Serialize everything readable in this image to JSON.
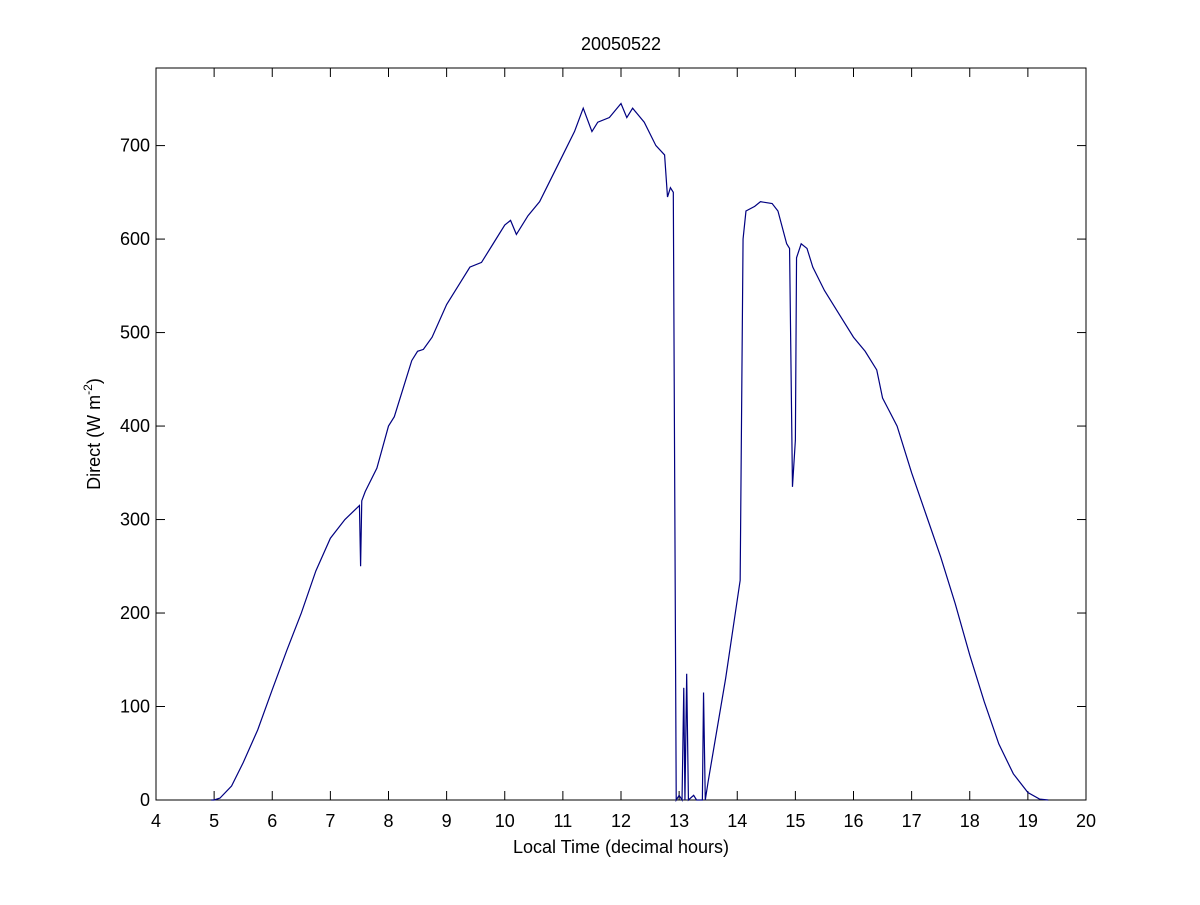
{
  "chart_data": {
    "type": "line",
    "title": "20050522",
    "xlabel": "Local Time (decimal hours)",
    "ylabel_parts": [
      "Direct (W m",
      "-2",
      ")"
    ],
    "x": [
      4.95,
      5.0,
      5.1,
      5.3,
      5.5,
      5.75,
      6.0,
      6.25,
      6.5,
      6.75,
      7.0,
      7.25,
      7.5,
      7.52,
      7.54,
      7.6,
      7.8,
      8.0,
      8.1,
      8.25,
      8.4,
      8.5,
      8.6,
      8.75,
      9.0,
      9.25,
      9.4,
      9.6,
      9.8,
      10.0,
      10.1,
      10.2,
      10.4,
      10.6,
      10.8,
      11.0,
      11.2,
      11.35,
      11.5,
      11.6,
      11.8,
      12.0,
      12.1,
      12.2,
      12.4,
      12.6,
      12.75,
      12.8,
      12.85,
      12.9,
      12.95,
      13.0,
      13.05,
      13.08,
      13.1,
      13.13,
      13.16,
      13.25,
      13.3,
      13.4,
      13.42,
      13.45,
      13.5,
      13.8,
      14.05,
      14.1,
      14.15,
      14.3,
      14.4,
      14.6,
      14.7,
      14.85,
      14.9,
      14.95,
      15.0,
      15.02,
      15.1,
      15.2,
      15.3,
      15.5,
      15.8,
      16.0,
      16.2,
      16.4,
      16.5,
      16.75,
      17.0,
      17.25,
      17.5,
      17.75,
      18.0,
      18.25,
      18.5,
      18.75,
      19.0,
      19.2,
      19.35
    ],
    "series": [
      {
        "color": "#000080",
        "values": [
          0,
          0,
          2,
          15,
          40,
          75,
          118,
          160,
          200,
          245,
          280,
          300,
          315,
          250,
          320,
          330,
          355,
          400,
          410,
          440,
          470,
          480,
          482,
          495,
          530,
          555,
          570,
          575,
          595,
          615,
          620,
          605,
          625,
          640,
          665,
          690,
          715,
          740,
          715,
          725,
          730,
          745,
          730,
          740,
          725,
          700,
          690,
          645,
          655,
          650,
          0,
          5,
          0,
          120,
          0,
          135,
          0,
          5,
          0,
          0,
          115,
          0,
          20,
          130,
          235,
          600,
          630,
          635,
          640,
          638,
          630,
          595,
          590,
          335,
          385,
          580,
          595,
          590,
          570,
          545,
          515,
          495,
          480,
          460,
          430,
          400,
          350,
          305,
          260,
          210,
          155,
          105,
          60,
          28,
          8,
          1,
          0
        ]
      }
    ],
    "xlim": [
      4,
      20
    ],
    "ylim": [
      0,
      783
    ],
    "xticks": [
      4,
      5,
      6,
      7,
      8,
      9,
      10,
      11,
      12,
      13,
      14,
      15,
      16,
      17,
      18,
      19,
      20
    ],
    "yticks": [
      0,
      100,
      200,
      300,
      400,
      500,
      600,
      700
    ],
    "grid": false
  }
}
